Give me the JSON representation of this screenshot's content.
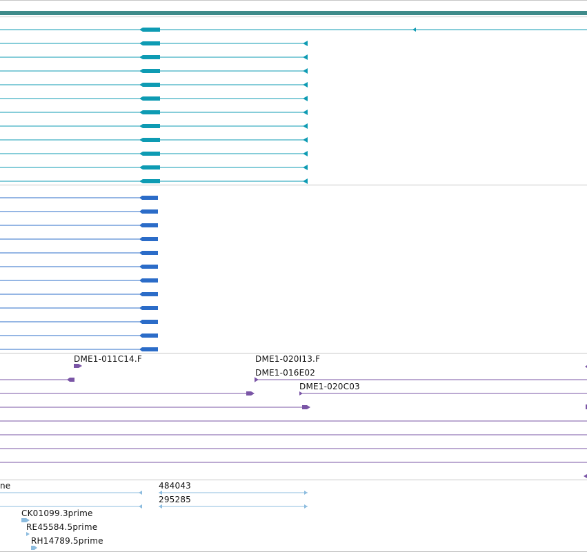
{
  "colors": {
    "scale_bar": "#3f8b8a",
    "gene_transcripts": "#0e9bb3",
    "cdna_alignments": "#2b6cc8",
    "bac_end_alignments": "#7a55a6",
    "est_alignments": "#8cbcdf",
    "track_divider": "#c6c6c6"
  },
  "tracks": {
    "transcripts": {
      "name": "gene-transcripts",
      "rows": 12
    },
    "cdnas": {
      "name": "cdna-alignments",
      "rows": 12
    },
    "bac_ends": {
      "name": "bac-end-alignments",
      "labels": [
        "DME1-011C14.F",
        "DME1-020I13.F",
        "DME1-016E02",
        "DME1-020C03"
      ]
    },
    "ests": {
      "name": "est-alignments",
      "labels": [
        "ne",
        "484043",
        "295285",
        "CK01099.3prime",
        "RE45584.5prime",
        "RH14789.5prime"
      ]
    }
  }
}
